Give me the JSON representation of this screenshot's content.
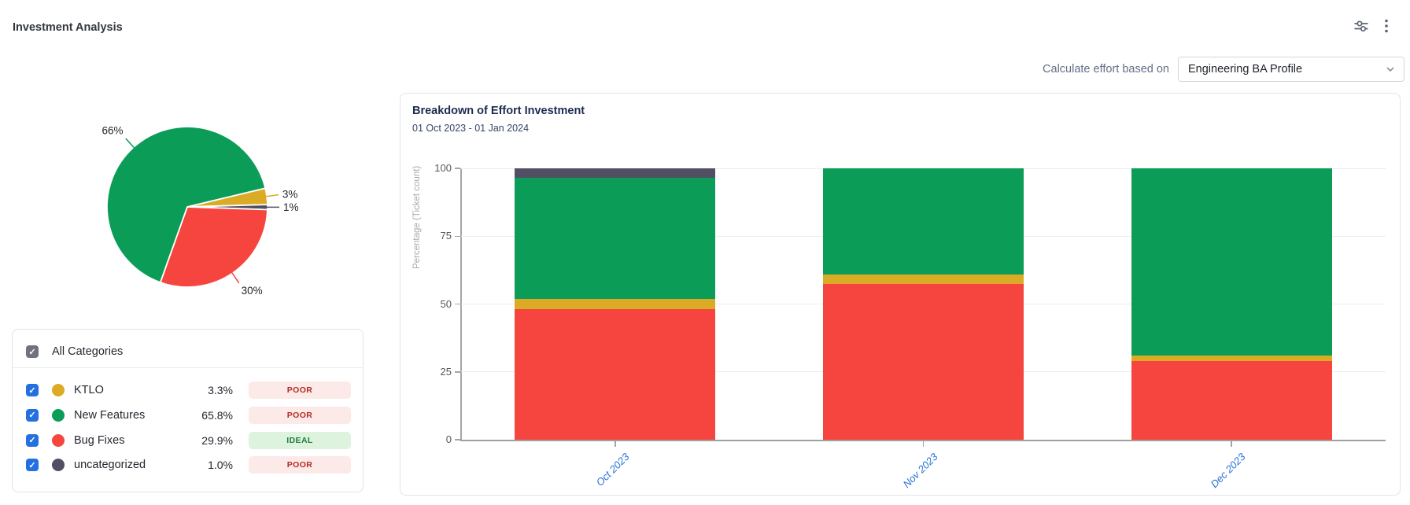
{
  "page": {
    "title": "Investment Analysis"
  },
  "toolbar": {
    "icons": [
      {
        "name": "sliders-icon"
      },
      {
        "name": "kebab-menu-icon"
      }
    ]
  },
  "controls": {
    "label": "Calculate effort based on",
    "selected_option": "Engineering BA Profile"
  },
  "colors": {
    "green": "#0b9d58",
    "red": "#f6453e",
    "gold": "#dcab25",
    "slate": "#504f63",
    "checkbox_blue": "#2470e0",
    "checkbox_gray": "#6f7380",
    "xlabel_blue": "#2671d8"
  },
  "categories": {
    "all_label": "All Categories",
    "all_checked": true,
    "items": [
      {
        "name": "KTLO",
        "pct": "3.3%",
        "status": "POOR",
        "status_type": "poor",
        "color": "#dcab25",
        "checked": true
      },
      {
        "name": "New Features",
        "pct": "65.8%",
        "status": "POOR",
        "status_type": "poor",
        "color": "#0b9d58",
        "checked": true
      },
      {
        "name": "Bug Fixes",
        "pct": "29.9%",
        "status": "IDEAL",
        "status_type": "ideal",
        "color": "#f6453e",
        "checked": true
      },
      {
        "name": "uncategorized",
        "pct": "1.0%",
        "status": "POOR",
        "status_type": "poor",
        "color": "#504f63",
        "checked": true
      }
    ]
  },
  "chart_data": [
    {
      "type": "pie",
      "title": "",
      "start_angle_deg": -13.5,
      "slices": [
        {
          "label": "KTLO",
          "value": 3.3,
          "display": "3%",
          "color": "#dcab25"
        },
        {
          "label": "uncategorized",
          "value": 1.0,
          "display": "1%",
          "color": "#504f63"
        },
        {
          "label": "Bug Fixes",
          "value": 29.9,
          "display": "30%",
          "color": "#f6453e"
        },
        {
          "label": "New Features",
          "value": 65.8,
          "display": "66%",
          "color": "#0b9d58"
        }
      ]
    },
    {
      "type": "bar",
      "stacked": true,
      "title": "Breakdown of Effort Investment",
      "subtitle": "01 Oct 2023 - 01 Jan 2024",
      "categories": [
        "Oct 2023",
        "Nov 2023",
        "Dec 2023"
      ],
      "series": [
        {
          "name": "Bug Fixes",
          "color": "#f6453e",
          "values": [
            48,
            57.5,
            29
          ]
        },
        {
          "name": "KTLO",
          "color": "#dcab25",
          "values": [
            4,
            3.5,
            2
          ]
        },
        {
          "name": "New Features",
          "color": "#0b9d58",
          "values": [
            44.5,
            39,
            69
          ]
        },
        {
          "name": "uncategorized",
          "color": "#504f63",
          "values": [
            3.5,
            0,
            0
          ]
        }
      ],
      "xlabel": "",
      "ylabel": "Percentage (Ticket count)",
      "yticks": [
        0,
        25,
        50,
        75,
        100
      ],
      "ylim": [
        0,
        100
      ],
      "grid": true,
      "legend": "none"
    }
  ]
}
